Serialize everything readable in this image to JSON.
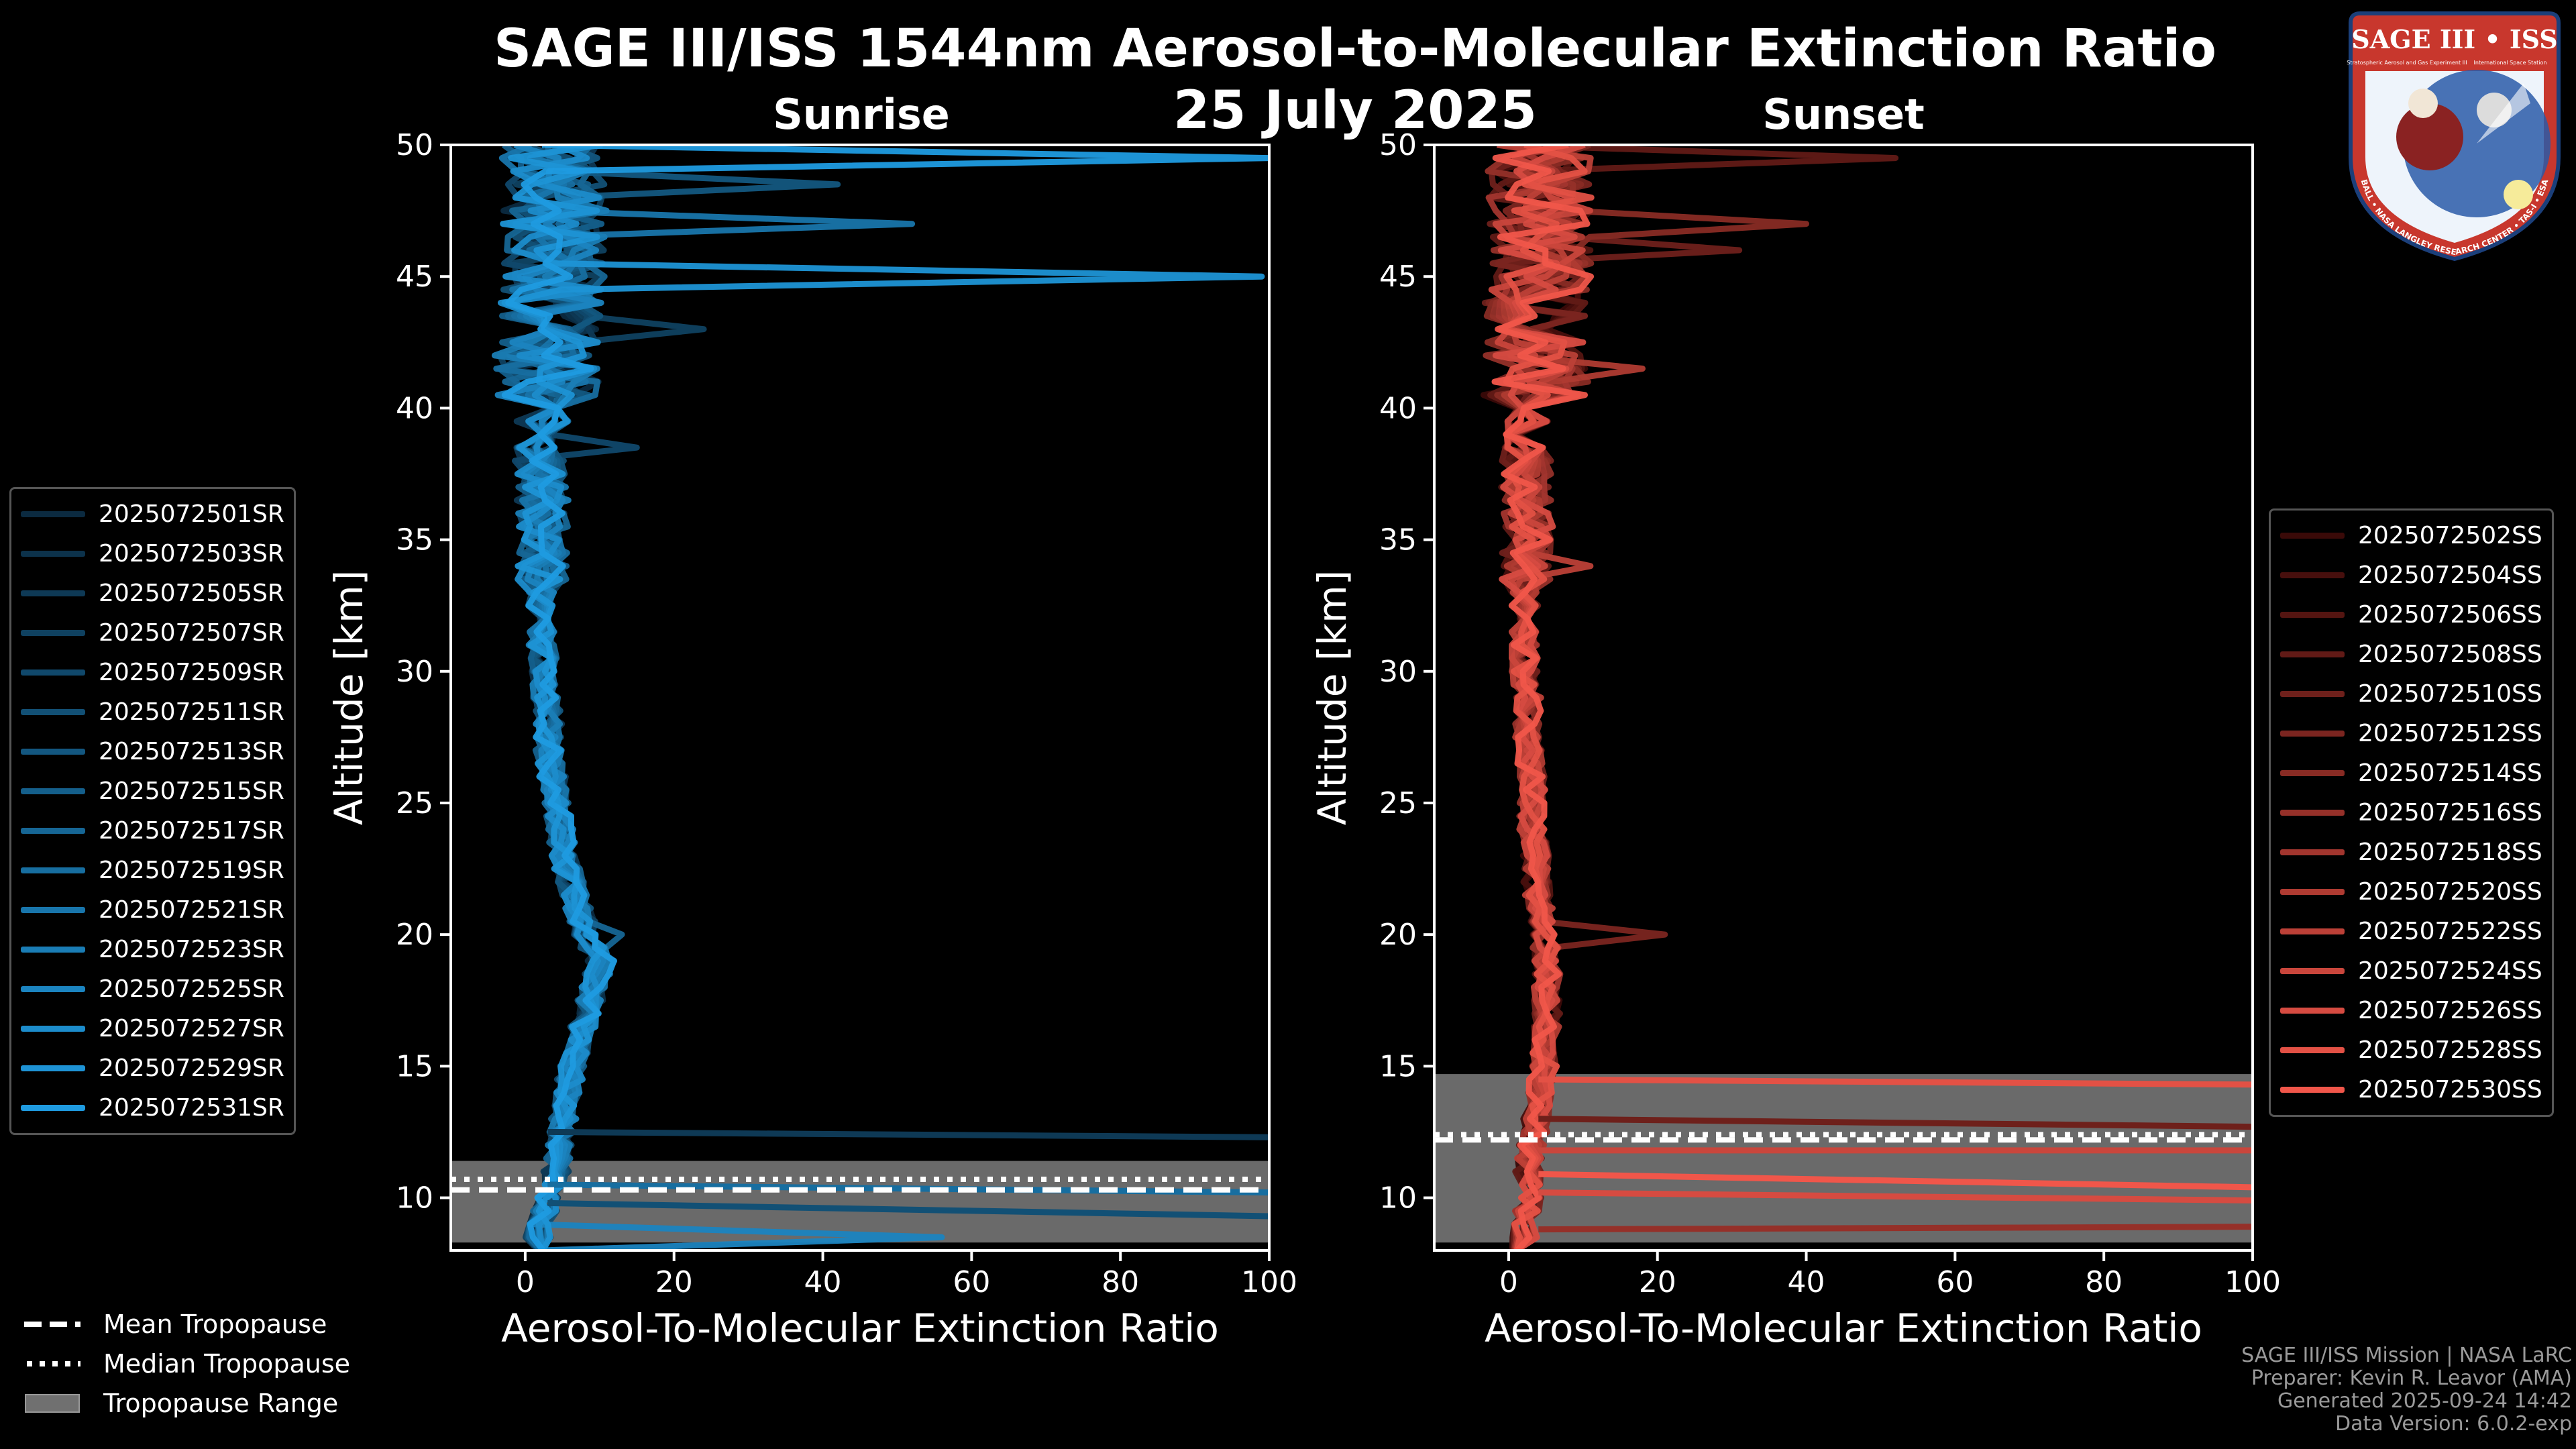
{
  "header": {
    "title": "SAGE III/ISS 1544nm Aerosol-to-Molecular Extinction Ratio",
    "date": "25 July 2025"
  },
  "chart_data": [
    {
      "type": "line",
      "title": "Sunrise",
      "xlabel": "Aerosol-To-Molecular Extinction Ratio",
      "ylabel": "Altitude [km]",
      "xlim": [
        -10,
        100
      ],
      "ylim": [
        8,
        50
      ],
      "xticks": [
        0,
        20,
        40,
        60,
        80,
        100
      ],
      "yticks": [
        10,
        15,
        20,
        25,
        30,
        35,
        40,
        45,
        50
      ],
      "tropopause": {
        "mean": 10.3,
        "median": 10.7,
        "range": [
          8.3,
          11.4
        ]
      },
      "series_names": [
        "2025072501SR",
        "2025072503SR",
        "2025072505SR",
        "2025072507SR",
        "2025072509SR",
        "2025072511SR",
        "2025072513SR",
        "2025072515SR",
        "2025072517SR",
        "2025072519SR",
        "2025072521SR",
        "2025072523SR",
        "2025072525SR",
        "2025072527SR",
        "2025072529SR",
        "2025072531SR"
      ],
      "color_start": "#0b2a40",
      "color_end": "#1f9be0",
      "profile": [
        [
          8,
          1
        ],
        [
          8.5,
          1.5
        ],
        [
          9,
          2
        ],
        [
          10,
          3
        ],
        [
          11,
          4
        ],
        [
          12,
          4.5
        ],
        [
          13,
          5
        ],
        [
          14,
          5.5
        ],
        [
          15,
          6
        ],
        [
          16,
          7
        ],
        [
          17,
          8
        ],
        [
          18,
          9
        ],
        [
          19,
          10
        ],
        [
          20,
          8
        ],
        [
          21,
          7
        ],
        [
          22,
          6
        ],
        [
          23,
          5
        ],
        [
          24,
          4.5
        ],
        [
          25,
          4
        ],
        [
          26,
          3.5
        ],
        [
          27,
          3
        ],
        [
          28,
          3
        ],
        [
          29,
          2.5
        ],
        [
          30,
          2.5
        ],
        [
          31,
          2
        ],
        [
          32,
          2
        ],
        [
          33,
          2
        ],
        [
          34,
          2
        ],
        [
          35,
          2
        ],
        [
          36,
          2
        ],
        [
          37,
          2
        ],
        [
          38,
          1.5
        ],
        [
          39,
          2
        ],
        [
          40,
          2
        ],
        [
          41,
          2.5
        ],
        [
          42,
          2
        ],
        [
          43,
          3
        ],
        [
          44,
          3
        ],
        [
          45,
          3
        ],
        [
          46,
          3.5
        ],
        [
          47,
          3
        ],
        [
          48,
          3.5
        ],
        [
          49,
          3
        ],
        [
          50,
          3
        ]
      ],
      "spikes": [
        {
          "series": 15,
          "alt": 49.5,
          "value": 100
        },
        {
          "series": 14,
          "alt": 45.0,
          "value": 99
        },
        {
          "series": 10,
          "alt": 47.0,
          "value": 52
        },
        {
          "series": 6,
          "alt": 48.3,
          "value": 42
        },
        {
          "series": 3,
          "alt": 43.0,
          "value": 24
        },
        {
          "series": 4,
          "alt": 38.5,
          "value": 15
        },
        {
          "series": 8,
          "alt": 20.0,
          "value": 13
        },
        {
          "series": 12,
          "alt": 8.6,
          "value": 56
        }
      ],
      "flat_lines": [
        {
          "series": 2,
          "alt_start": 12.5,
          "alt_end": 12.3
        },
        {
          "series": 5,
          "alt_start": 9.8,
          "alt_end": 9.3
        },
        {
          "series": 9,
          "alt_start": 10.5,
          "alt_end": 10.2
        }
      ]
    },
    {
      "type": "line",
      "title": "Sunset",
      "xlabel": "Aerosol-To-Molecular Extinction Ratio",
      "ylabel": "Altitude [km]",
      "xlim": [
        -10,
        100
      ],
      "ylim": [
        8,
        50
      ],
      "xticks": [
        0,
        20,
        40,
        60,
        80,
        100
      ],
      "yticks": [
        10,
        15,
        20,
        25,
        30,
        35,
        40,
        45,
        50
      ],
      "tropopause": {
        "mean": 12.2,
        "median": 12.4,
        "range": [
          8.3,
          14.7
        ]
      },
      "series_names": [
        "2025072502SS",
        "2025072504SS",
        "2025072506SS",
        "2025072508SS",
        "2025072510SS",
        "2025072512SS",
        "2025072514SS",
        "2025072516SS",
        "2025072518SS",
        "2025072520SS",
        "2025072522SS",
        "2025072524SS",
        "2025072526SS",
        "2025072528SS",
        "2025072530SS"
      ],
      "color_start": "#3a0a08",
      "color_end": "#f0564a",
      "profile": [
        [
          8,
          2
        ],
        [
          9,
          2
        ],
        [
          10,
          2.5
        ],
        [
          11,
          2.5
        ],
        [
          12,
          3
        ],
        [
          13,
          3.5
        ],
        [
          14,
          4
        ],
        [
          15,
          4.5
        ],
        [
          16,
          5
        ],
        [
          17,
          5
        ],
        [
          18,
          5
        ],
        [
          19,
          5
        ],
        [
          20,
          4.5
        ],
        [
          21,
          4
        ],
        [
          22,
          3.5
        ],
        [
          23,
          3.5
        ],
        [
          24,
          3
        ],
        [
          25,
          3
        ],
        [
          26,
          3
        ],
        [
          27,
          2.5
        ],
        [
          28,
          2.5
        ],
        [
          29,
          2.5
        ],
        [
          30,
          2
        ],
        [
          31,
          2
        ],
        [
          32,
          2
        ],
        [
          33,
          2
        ],
        [
          34,
          2
        ],
        [
          35,
          2.5
        ],
        [
          36,
          2
        ],
        [
          37,
          2
        ],
        [
          38,
          2
        ],
        [
          39,
          2.5
        ],
        [
          40,
          2.5
        ],
        [
          41,
          3
        ],
        [
          42,
          3
        ],
        [
          43,
          3
        ],
        [
          44,
          3
        ],
        [
          45,
          3.5
        ],
        [
          46,
          3.5
        ],
        [
          47,
          3.5
        ],
        [
          48,
          3.5
        ],
        [
          49,
          3.5
        ],
        [
          50,
          4
        ]
      ],
      "spikes": [
        {
          "series": 3,
          "alt": 49.6,
          "value": 52
        },
        {
          "series": 6,
          "alt": 47.0,
          "value": 40
        },
        {
          "series": 4,
          "alt": 46.0,
          "value": 31
        },
        {
          "series": 9,
          "alt": 41.6,
          "value": 18
        },
        {
          "series": 10,
          "alt": 34.0,
          "value": 11
        },
        {
          "series": 5,
          "alt": 20.0,
          "value": 21
        }
      ],
      "flat_lines": [
        {
          "series": 13,
          "alt_start": 14.5,
          "alt_end": 14.3
        },
        {
          "series": 4,
          "alt_start": 13.0,
          "alt_end": 12.7
        },
        {
          "series": 11,
          "alt_start": 11.8,
          "alt_end": 11.8
        },
        {
          "series": 14,
          "alt_start": 10.9,
          "alt_end": 10.4
        },
        {
          "series": 12,
          "alt_start": 10.2,
          "alt_end": 9.9
        },
        {
          "series": 7,
          "alt_start": 8.8,
          "alt_end": 8.9
        }
      ]
    }
  ],
  "legend_tropopause": {
    "mean_label": "Mean Tropopause",
    "median_label": "Median Tropopause",
    "range_label": "Tropopause Range"
  },
  "credits": {
    "line1": "SAGE III/ISS Mission | NASA LaRC",
    "line2": "Preparer: Kevin R. Leavor (AMA)",
    "line3": "Generated 2025-09-24 14:42",
    "line4": "Data Version: 6.0.2-exp"
  },
  "logo": {
    "top_text": "SAGE III • ISS",
    "ring_text": "BALL • NASA LANGLEY RESEARCH CENTER • TAS-I • ESA",
    "sub_text_left": "Stratospheric Aerosol and Gas Experiment III",
    "sub_text_right": "International Space Station"
  },
  "colors": {
    "axis": "#ffffff",
    "trop_range": "#707070"
  }
}
